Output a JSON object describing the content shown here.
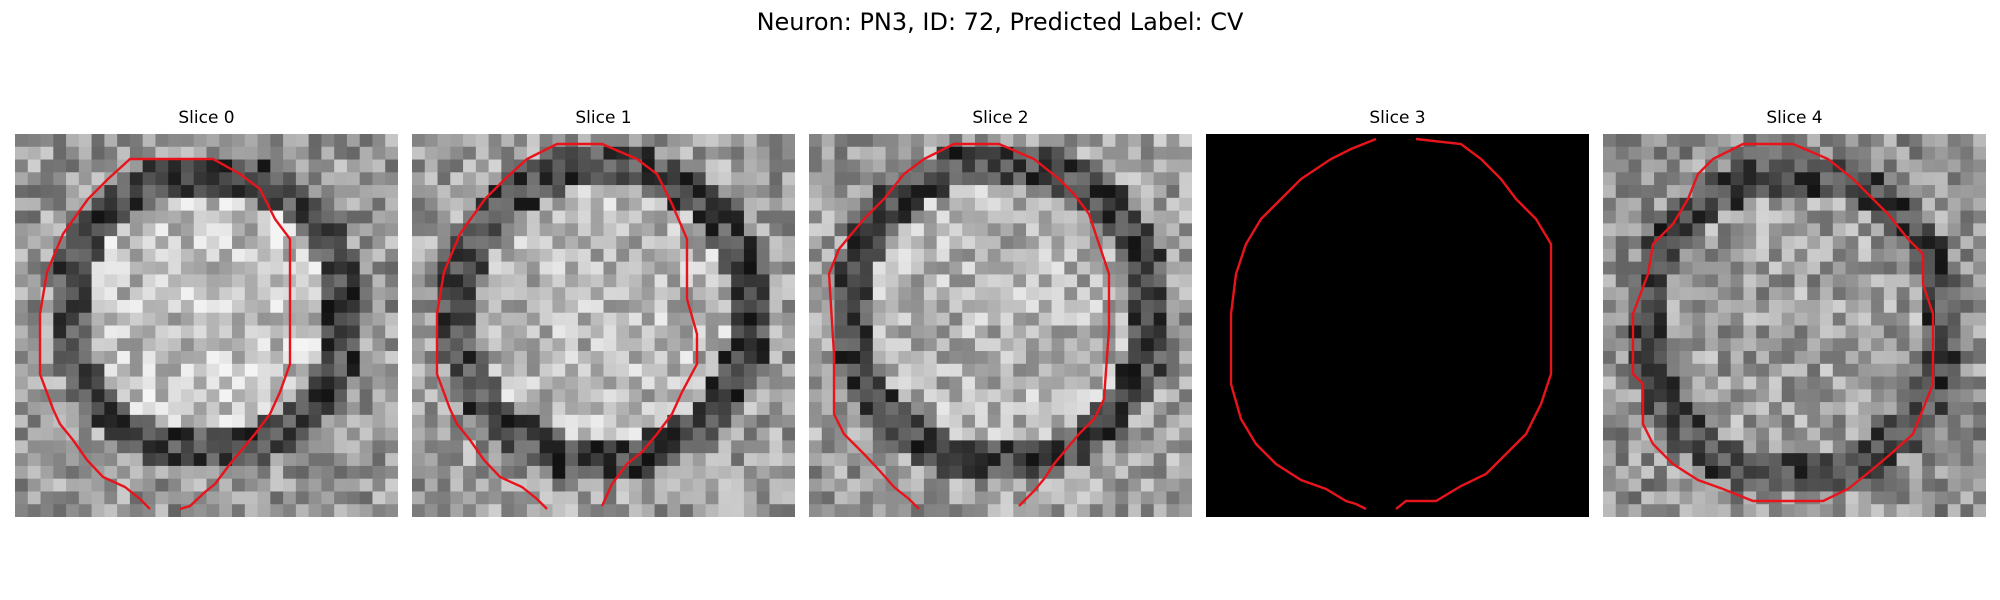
{
  "title": "Neuron: PN3, ID: 72, Predicted Label: CV",
  "panels": [
    {
      "title": "Slice 0",
      "image": "grayscale-micrograph-cell",
      "contour_color": "#e8141c"
    },
    {
      "title": "Slice 1",
      "image": "grayscale-micrograph-cell",
      "contour_color": "#e8141c"
    },
    {
      "title": "Slice 2",
      "image": "grayscale-micrograph-cell",
      "contour_color": "#e8141c"
    },
    {
      "title": "Slice 3",
      "image": "black-empty-slice",
      "contour_color": "#e8141c"
    },
    {
      "title": "Slice 4",
      "image": "grayscale-micrograph-cell",
      "contour_color": "#e8141c"
    }
  ],
  "colors": {
    "background": "#ffffff",
    "contour": "#e8141c",
    "empty_slice": "#000000"
  }
}
